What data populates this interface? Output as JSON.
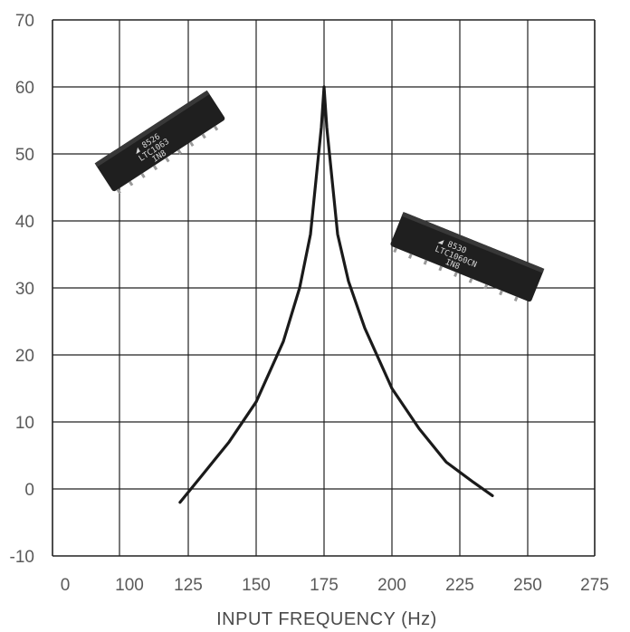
{
  "chart_data": {
    "type": "line",
    "title": "",
    "xlabel": "INPUT FREQUENCY (Hz)",
    "ylabel": "",
    "xlim": [
      0,
      275
    ],
    "ylim": [
      -10,
      70
    ],
    "x_ticks": [
      "0",
      "100",
      "125",
      "150",
      "175",
      "200",
      "225",
      "250",
      "275"
    ],
    "y_ticks": [
      "70",
      "60",
      "50",
      "40",
      "30",
      "20",
      "10",
      "0",
      "-10"
    ],
    "grid": true,
    "series": [
      {
        "x": [
          122,
          130,
          140,
          150,
          160,
          166,
          170,
          172,
          174,
          175,
          176,
          178,
          180,
          184,
          190,
          200,
          210,
          220,
          230,
          237
        ],
        "y": [
          -2,
          2,
          7,
          13,
          22,
          30,
          38,
          46,
          54,
          60,
          54,
          46,
          38,
          31,
          24,
          15,
          9,
          4,
          1,
          -1
        ]
      }
    ],
    "images": [
      {
        "name": "ic-chip-left",
        "text": [
          "8526",
          "LTC1063",
          "IN8"
        ]
      },
      {
        "name": "ic-chip-right",
        "text": [
          "8530",
          "LTC1060CN",
          "IN8"
        ]
      }
    ],
    "colors": {
      "grid": "#222222",
      "curve": "#1a1a1a",
      "chip": "#1f1f1f"
    }
  }
}
